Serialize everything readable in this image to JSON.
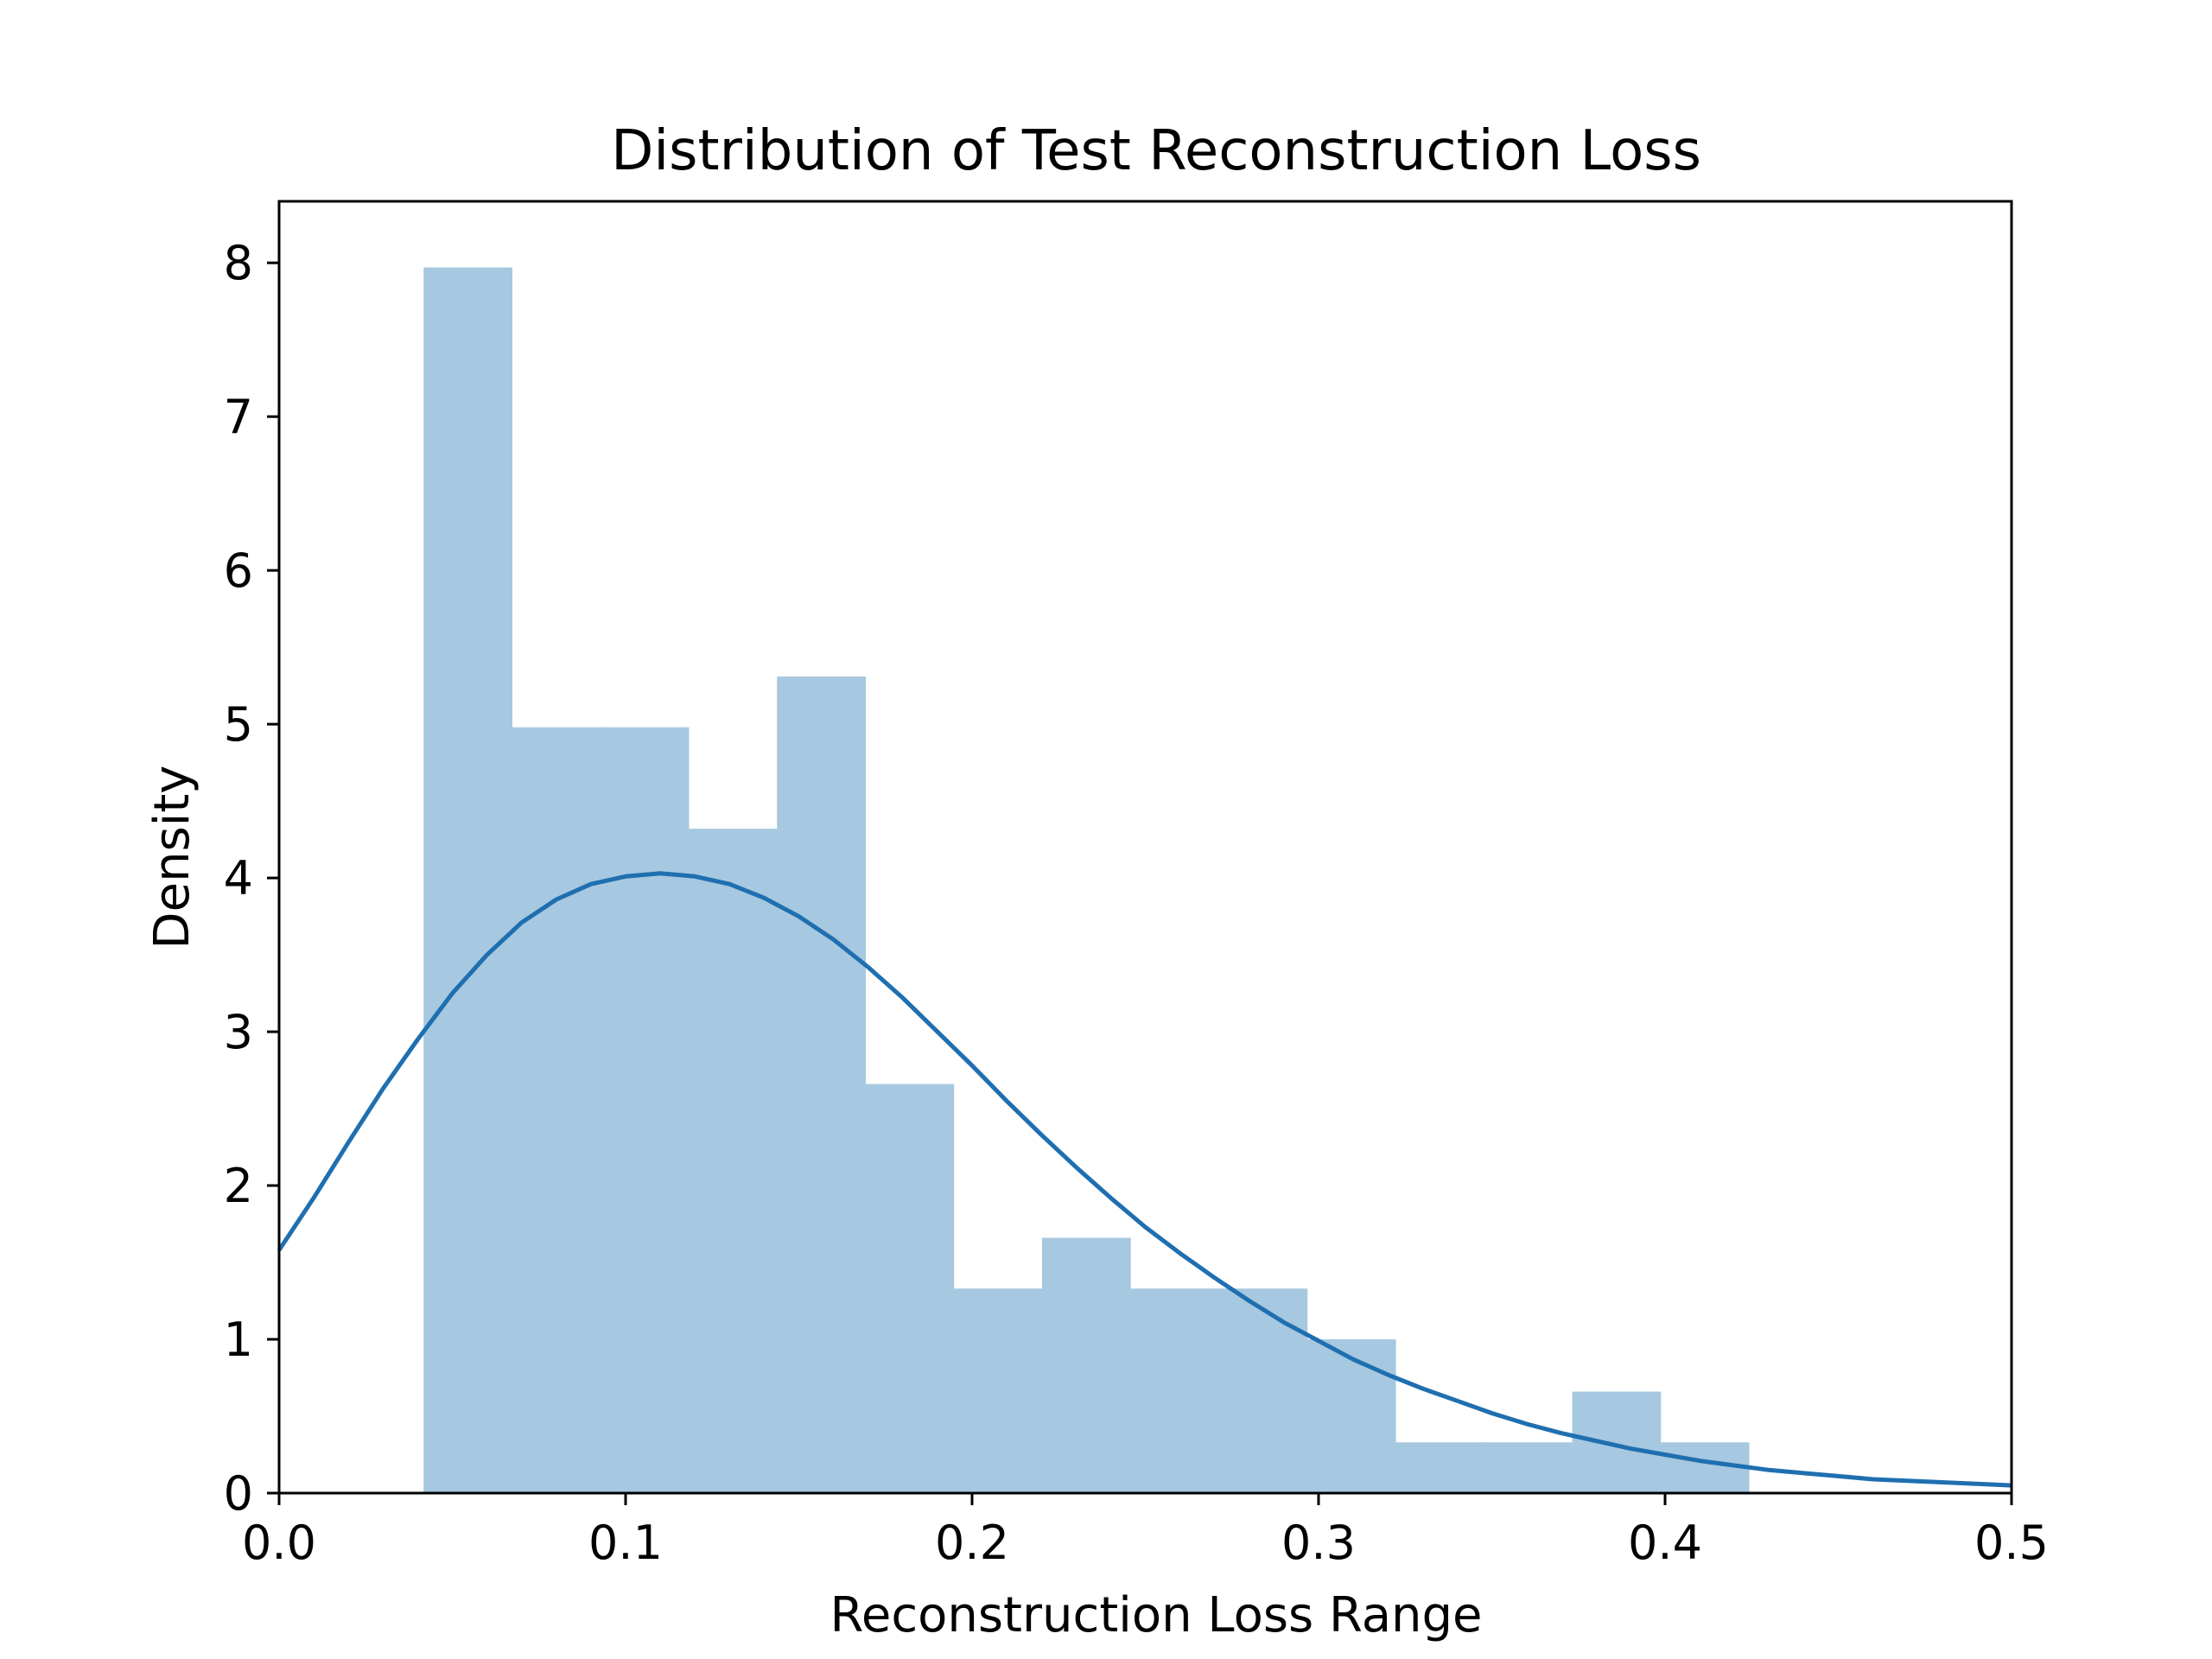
{
  "chart_data": {
    "type": "bar",
    "title": "Distribution of Test Reconstruction Loss",
    "xlabel": "Reconstruction Loss Range",
    "ylabel": "Density",
    "xlim": [
      0.0,
      0.5
    ],
    "ylim": [
      0,
      8.4
    ],
    "grid": false,
    "x_ticks": [
      "0.0",
      "0.1",
      "0.2",
      "0.3",
      "0.4",
      "0.5"
    ],
    "y_ticks": [
      "0",
      "1",
      "2",
      "3",
      "4",
      "5",
      "6",
      "7",
      "8"
    ],
    "histogram": {
      "bin_edges": [
        0.0417,
        0.0672,
        0.0927,
        0.1182,
        0.1437,
        0.1692,
        0.1947,
        0.2202,
        0.2457,
        0.2712,
        0.2967,
        0.3222,
        0.3477,
        0.3732,
        0.3987,
        0.4242
      ],
      "density": [
        7.97,
        4.98,
        4.98,
        4.32,
        5.31,
        2.66,
        1.33,
        1.66,
        1.33,
        1.33,
        1.0,
        0.33,
        0.33,
        0.66,
        0.33
      ],
      "color": "#a6c8e0"
    },
    "kde": {
      "color": "#1f6fb0",
      "x": [
        0.0,
        0.01,
        0.02,
        0.03,
        0.04,
        0.05,
        0.06,
        0.07,
        0.08,
        0.09,
        0.1,
        0.11,
        0.12,
        0.13,
        0.14,
        0.15,
        0.16,
        0.17,
        0.18,
        0.19,
        0.2,
        0.21,
        0.22,
        0.23,
        0.24,
        0.25,
        0.26,
        0.27,
        0.28,
        0.29,
        0.3,
        0.31,
        0.32,
        0.33,
        0.34,
        0.35,
        0.36,
        0.37,
        0.38,
        0.39,
        0.4,
        0.41,
        0.42,
        0.43,
        0.44,
        0.45,
        0.46,
        0.47,
        0.48,
        0.49,
        0.5
      ],
      "y": [
        1.58,
        1.92,
        2.28,
        2.63,
        2.95,
        3.25,
        3.5,
        3.71,
        3.86,
        3.96,
        4.01,
        4.03,
        4.01,
        3.96,
        3.87,
        3.75,
        3.6,
        3.42,
        3.22,
        3.0,
        2.78,
        2.55,
        2.33,
        2.12,
        1.92,
        1.73,
        1.56,
        1.4,
        1.25,
        1.11,
        0.99,
        0.87,
        0.77,
        0.68,
        0.6,
        0.52,
        0.45,
        0.39,
        0.34,
        0.29,
        0.25,
        0.21,
        0.18,
        0.15,
        0.13,
        0.11,
        0.09,
        0.08,
        0.07,
        0.06,
        0.05
      ]
    }
  }
}
